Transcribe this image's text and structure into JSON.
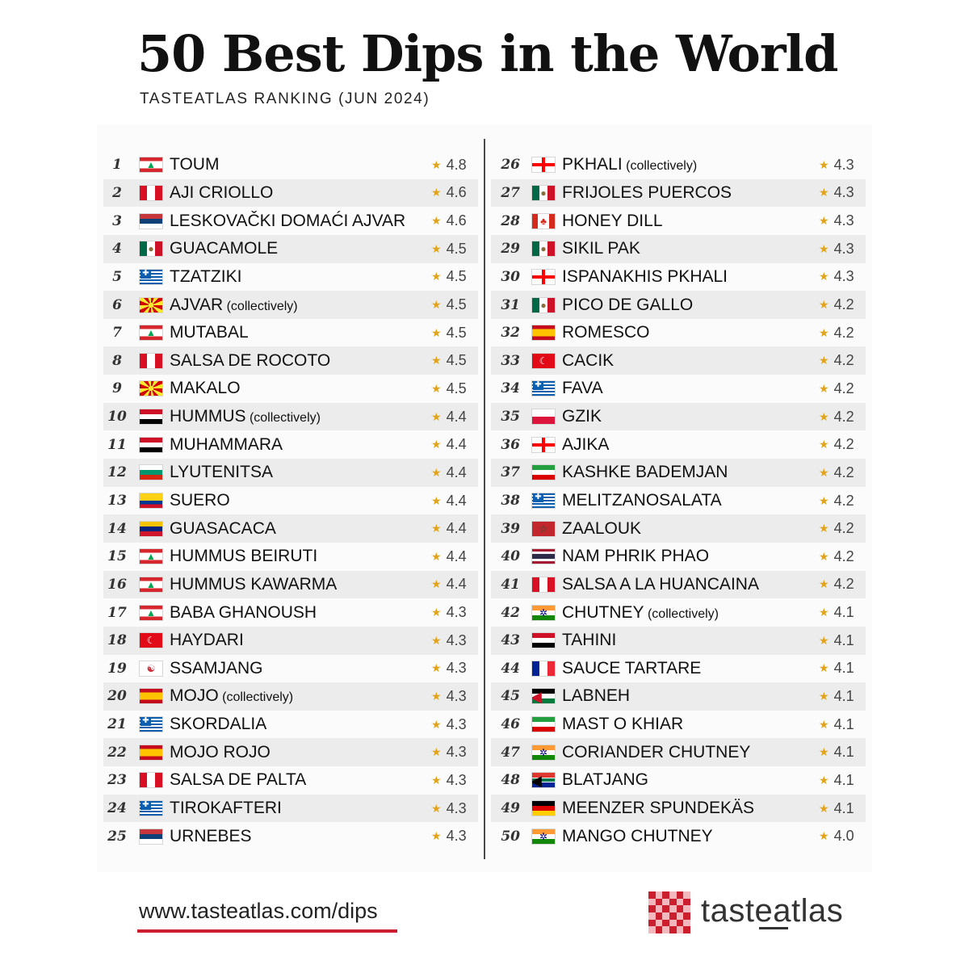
{
  "title": "50 Best Dips in the World",
  "subtitle": "TASTEATLAS RANKING (JUN 2024)",
  "star_color": "#e2a31a",
  "footer": {
    "url": "www.tasteatlas.com/dips",
    "url_underline_color": "#cc1f2e"
  },
  "logo": {
    "text_part1": "taste",
    "text_part2": "atlas",
    "accent": "#cc1f2e"
  },
  "left_column": [
    {
      "rank": "1",
      "name": "TOUM",
      "note": "",
      "rating": "4.8",
      "flag": "lebanon"
    },
    {
      "rank": "2",
      "name": "AJI CRIOLLO",
      "note": "",
      "rating": "4.6",
      "flag": "peru"
    },
    {
      "rank": "3",
      "name": "LESKOVAČKI DOMAĆI AJVAR",
      "note": "",
      "rating": "4.6",
      "flag": "serbia"
    },
    {
      "rank": "4",
      "name": "GUACAMOLE",
      "note": "",
      "rating": "4.5",
      "flag": "mexico"
    },
    {
      "rank": "5",
      "name": "TZATZIKI",
      "note": "",
      "rating": "4.5",
      "flag": "greece"
    },
    {
      "rank": "6",
      "name": "AJVAR",
      "note": "(collectively)",
      "rating": "4.5",
      "flag": "north-macedonia"
    },
    {
      "rank": "7",
      "name": "MUTABAL",
      "note": "",
      "rating": "4.5",
      "flag": "lebanon"
    },
    {
      "rank": "8",
      "name": "SALSA DE ROCOTO",
      "note": "",
      "rating": "4.5",
      "flag": "peru"
    },
    {
      "rank": "9",
      "name": "MAKALO",
      "note": "",
      "rating": "4.5",
      "flag": "north-macedonia"
    },
    {
      "rank": "10",
      "name": "HUMMUS",
      "note": "(collectively)",
      "rating": "4.4",
      "flag": "syria"
    },
    {
      "rank": "11",
      "name": "MUHAMMARA",
      "note": "",
      "rating": "4.4",
      "flag": "syria"
    },
    {
      "rank": "12",
      "name": "LYUTENITSA",
      "note": "",
      "rating": "4.4",
      "flag": "bulgaria"
    },
    {
      "rank": "13",
      "name": "SUERO",
      "note": "",
      "rating": "4.4",
      "flag": "colombia"
    },
    {
      "rank": "14",
      "name": "GUASACACA",
      "note": "",
      "rating": "4.4",
      "flag": "venezuela"
    },
    {
      "rank": "15",
      "name": "HUMMUS BEIRUTI",
      "note": "",
      "rating": "4.4",
      "flag": "lebanon"
    },
    {
      "rank": "16",
      "name": "HUMMUS KAWARMA",
      "note": "",
      "rating": "4.4",
      "flag": "lebanon"
    },
    {
      "rank": "17",
      "name": "BABA GHANOUSH",
      "note": "",
      "rating": "4.3",
      "flag": "lebanon"
    },
    {
      "rank": "18",
      "name": "HAYDARI",
      "note": "",
      "rating": "4.3",
      "flag": "turkey"
    },
    {
      "rank": "19",
      "name": "SSAMJANG",
      "note": "",
      "rating": "4.3",
      "flag": "south-korea"
    },
    {
      "rank": "20",
      "name": "MOJO",
      "note": "(collectively)",
      "rating": "4.3",
      "flag": "spain"
    },
    {
      "rank": "21",
      "name": "SKORDALIA",
      "note": "",
      "rating": "4.3",
      "flag": "greece"
    },
    {
      "rank": "22",
      "name": "MOJO ROJO",
      "note": "",
      "rating": "4.3",
      "flag": "spain"
    },
    {
      "rank": "23",
      "name": "SALSA DE PALTA",
      "note": "",
      "rating": "4.3",
      "flag": "peru"
    },
    {
      "rank": "24",
      "name": "TIROKAFTERI",
      "note": "",
      "rating": "4.3",
      "flag": "greece"
    },
    {
      "rank": "25",
      "name": "URNEBES",
      "note": "",
      "rating": "4.3",
      "flag": "serbia"
    }
  ],
  "right_column": [
    {
      "rank": "26",
      "name": "PKHALI",
      "note": "(collectively)",
      "rating": "4.3",
      "flag": "georgia"
    },
    {
      "rank": "27",
      "name": "FRIJOLES PUERCOS",
      "note": "",
      "rating": "4.3",
      "flag": "mexico"
    },
    {
      "rank": "28",
      "name": "HONEY DILL",
      "note": "",
      "rating": "4.3",
      "flag": "canada"
    },
    {
      "rank": "29",
      "name": "SIKIL PAK",
      "note": "",
      "rating": "4.3",
      "flag": "mexico"
    },
    {
      "rank": "30",
      "name": "ISPANAKHIS PKHALI",
      "note": "",
      "rating": "4.3",
      "flag": "georgia"
    },
    {
      "rank": "31",
      "name": "PICO DE GALLO",
      "note": "",
      "rating": "4.2",
      "flag": "mexico"
    },
    {
      "rank": "32",
      "name": "ROMESCO",
      "note": "",
      "rating": "4.2",
      "flag": "spain"
    },
    {
      "rank": "33",
      "name": "CACIK",
      "note": "",
      "rating": "4.2",
      "flag": "turkey"
    },
    {
      "rank": "34",
      "name": "FAVA",
      "note": "",
      "rating": "4.2",
      "flag": "greece"
    },
    {
      "rank": "35",
      "name": "GZIK",
      "note": "",
      "rating": "4.2",
      "flag": "poland"
    },
    {
      "rank": "36",
      "name": "AJIKA",
      "note": "",
      "rating": "4.2",
      "flag": "georgia"
    },
    {
      "rank": "37",
      "name": "KASHKE BADEMJAN",
      "note": "",
      "rating": "4.2",
      "flag": "iran"
    },
    {
      "rank": "38",
      "name": "MELITZANOSALATA",
      "note": "",
      "rating": "4.2",
      "flag": "greece"
    },
    {
      "rank": "39",
      "name": "ZAALOUK",
      "note": "",
      "rating": "4.2",
      "flag": "morocco"
    },
    {
      "rank": "40",
      "name": "NAM PHRIK PHAO",
      "note": "",
      "rating": "4.2",
      "flag": "thailand"
    },
    {
      "rank": "41",
      "name": "SALSA A LA HUANCAINA",
      "note": "",
      "rating": "4.2",
      "flag": "peru"
    },
    {
      "rank": "42",
      "name": "CHUTNEY",
      "note": "(collectively)",
      "rating": "4.1",
      "flag": "india"
    },
    {
      "rank": "43",
      "name": "TAHINI",
      "note": "",
      "rating": "4.1",
      "flag": "syria"
    },
    {
      "rank": "44",
      "name": "SAUCE TARTARE",
      "note": "",
      "rating": "4.1",
      "flag": "france"
    },
    {
      "rank": "45",
      "name": "LABNEH",
      "note": "",
      "rating": "4.1",
      "flag": "jordan"
    },
    {
      "rank": "46",
      "name": "MAST O KHIAR",
      "note": "",
      "rating": "4.1",
      "flag": "iran"
    },
    {
      "rank": "47",
      "name": "CORIANDER CHUTNEY",
      "note": "",
      "rating": "4.1",
      "flag": "india"
    },
    {
      "rank": "48",
      "name": "BLATJANG",
      "note": "",
      "rating": "4.1",
      "flag": "south-africa"
    },
    {
      "rank": "49",
      "name": "MEENZER SPUNDEKÄS",
      "note": "",
      "rating": "4.1",
      "flag": "germany"
    },
    {
      "rank": "50",
      "name": "MANGO CHUTNEY",
      "note": "",
      "rating": "4.0",
      "flag": "india"
    }
  ]
}
